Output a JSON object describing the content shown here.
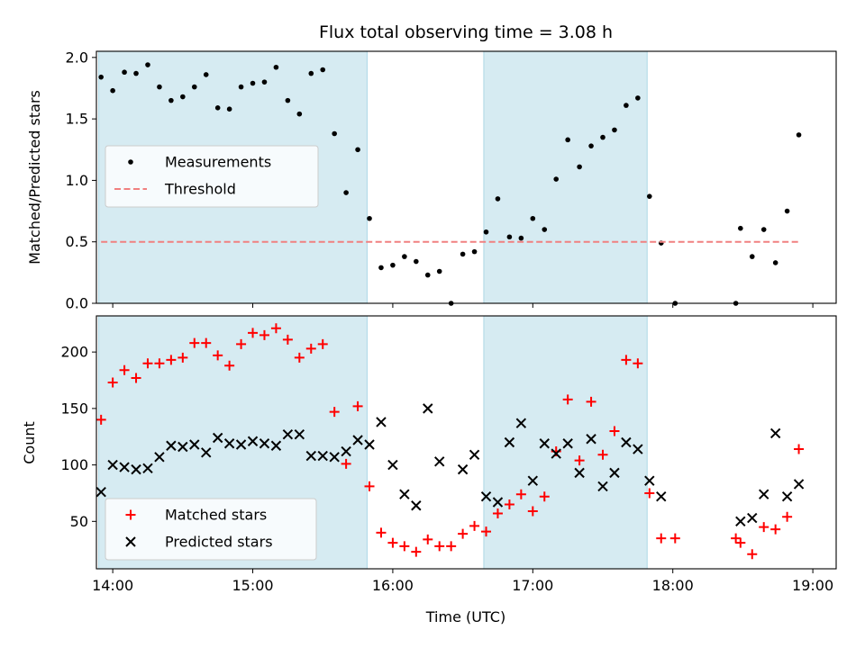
{
  "chart_data": [
    {
      "type": "scatter",
      "title": "Flux total observing time = 3.08 h",
      "xlabel": "",
      "ylabel": "Matched/Predicted stars",
      "xlim": [
        "13:53",
        "19:10"
      ],
      "ylim": [
        0,
        2.05
      ],
      "yticks": [
        0.0,
        0.5,
        1.0,
        1.5,
        2.0
      ],
      "grid": false,
      "legend_position": "center-left",
      "shaded_intervals": [
        [
          "13:54",
          "15:49"
        ],
        [
          "16:39",
          "17:49"
        ]
      ],
      "series": [
        {
          "name": "Measurements",
          "color": "#000000",
          "marker": "dot",
          "points": [
            [
              "13:55",
              1.84
            ],
            [
              "14:00",
              1.73
            ],
            [
              "14:05",
              1.88
            ],
            [
              "14:10",
              1.87
            ],
            [
              "14:15",
              1.94
            ],
            [
              "14:20",
              1.76
            ],
            [
              "14:25",
              1.65
            ],
            [
              "14:30",
              1.68
            ],
            [
              "14:35",
              1.76
            ],
            [
              "14:40",
              1.86
            ],
            [
              "14:45",
              1.59
            ],
            [
              "14:50",
              1.58
            ],
            [
              "14:55",
              1.76
            ],
            [
              "15:00",
              1.79
            ],
            [
              "15:05",
              1.8
            ],
            [
              "15:10",
              1.92
            ],
            [
              "15:15",
              1.65
            ],
            [
              "15:20",
              1.54
            ],
            [
              "15:25",
              1.87
            ],
            [
              "15:30",
              1.9
            ],
            [
              "15:35",
              1.38
            ],
            [
              "15:40",
              0.9
            ],
            [
              "15:45",
              1.25
            ],
            [
              "15:50",
              0.69
            ],
            [
              "15:55",
              0.29
            ],
            [
              "16:00",
              0.31
            ],
            [
              "16:05",
              0.38
            ],
            [
              "16:10",
              0.34
            ],
            [
              "16:15",
              0.23
            ],
            [
              "16:20",
              0.26
            ],
            [
              "16:25",
              0.0
            ],
            [
              "16:30",
              0.4
            ],
            [
              "16:35",
              0.42
            ],
            [
              "16:40",
              0.58
            ],
            [
              "16:45",
              0.85
            ],
            [
              "16:50",
              0.54
            ],
            [
              "16:55",
              0.53
            ],
            [
              "17:00",
              0.69
            ],
            [
              "17:05",
              0.6
            ],
            [
              "17:10",
              1.01
            ],
            [
              "17:15",
              1.33
            ],
            [
              "17:20",
              1.11
            ],
            [
              "17:25",
              1.28
            ],
            [
              "17:30",
              1.35
            ],
            [
              "17:35",
              1.41
            ],
            [
              "17:40",
              1.61
            ],
            [
              "17:45",
              1.67
            ],
            [
              "17:50",
              0.87
            ],
            [
              "17:55",
              0.49
            ],
            [
              "18:01",
              0.0
            ],
            [
              "18:27",
              0.0
            ],
            [
              "18:29",
              0.61
            ],
            [
              "18:34",
              0.38
            ],
            [
              "18:39",
              0.6
            ],
            [
              "18:44",
              0.33
            ],
            [
              "18:49",
              0.75
            ],
            [
              "18:54",
              1.37
            ]
          ]
        },
        {
          "name": "Threshold",
          "color": "#f08080",
          "style": "dashed",
          "points": [
            [
              "13:55",
              0.5
            ],
            [
              "18:54",
              0.5
            ]
          ]
        }
      ]
    },
    {
      "type": "scatter",
      "title": "",
      "xlabel": "Time (UTC)",
      "ylabel": "Count",
      "xlim": [
        "13:53",
        "19:10"
      ],
      "ylim": [
        8,
        232
      ],
      "yticks": [
        50,
        100,
        150,
        200
      ],
      "xticks": [
        "14:00",
        "15:00",
        "16:00",
        "17:00",
        "18:00",
        "19:00"
      ],
      "grid": false,
      "legend_position": "lower-left",
      "shaded_intervals": [
        [
          "13:54",
          "15:49"
        ],
        [
          "16:39",
          "17:49"
        ]
      ],
      "series": [
        {
          "name": "Matched stars",
          "color": "#ff0000",
          "marker": "plus",
          "points": [
            [
              "13:55",
              140
            ],
            [
              "14:00",
              173
            ],
            [
              "14:05",
              184
            ],
            [
              "14:10",
              177
            ],
            [
              "14:15",
              190
            ],
            [
              "14:20",
              190
            ],
            [
              "14:25",
              193
            ],
            [
              "14:30",
              195
            ],
            [
              "14:35",
              208
            ],
            [
              "14:40",
              208
            ],
            [
              "14:45",
              197
            ],
            [
              "14:50",
              188
            ],
            [
              "14:55",
              207
            ],
            [
              "15:00",
              217
            ],
            [
              "15:05",
              215
            ],
            [
              "15:10",
              221
            ],
            [
              "15:15",
              211
            ],
            [
              "15:20",
              195
            ],
            [
              "15:25",
              203
            ],
            [
              "15:30",
              207
            ],
            [
              "15:35",
              147
            ],
            [
              "15:40",
              101
            ],
            [
              "15:45",
              152
            ],
            [
              "15:50",
              81
            ],
            [
              "15:55",
              40
            ],
            [
              "16:00",
              31
            ],
            [
              "16:05",
              28
            ],
            [
              "16:10",
              23
            ],
            [
              "16:15",
              34
            ],
            [
              "16:20",
              28
            ],
            [
              "16:25",
              28
            ],
            [
              "16:30",
              39
            ],
            [
              "16:35",
              46
            ],
            [
              "16:40",
              41
            ],
            [
              "16:45",
              57
            ],
            [
              "16:50",
              65
            ],
            [
              "16:55",
              74
            ],
            [
              "17:00",
              59
            ],
            [
              "17:05",
              72
            ],
            [
              "17:10",
              112
            ],
            [
              "17:15",
              158
            ],
            [
              "17:20",
              104
            ],
            [
              "17:25",
              156
            ],
            [
              "17:30",
              109
            ],
            [
              "17:35",
              130
            ],
            [
              "17:40",
              193
            ],
            [
              "17:45",
              190
            ],
            [
              "17:50",
              75
            ],
            [
              "17:55",
              35
            ],
            [
              "18:01",
              35
            ],
            [
              "18:27",
              35
            ],
            [
              "18:29",
              31
            ],
            [
              "18:34",
              21
            ],
            [
              "18:39",
              45
            ],
            [
              "18:44",
              43
            ],
            [
              "18:49",
              54
            ],
            [
              "18:54",
              114
            ]
          ]
        },
        {
          "name": "Predicted stars",
          "color": "#000000",
          "marker": "x",
          "points": [
            [
              "13:55",
              76
            ],
            [
              "14:00",
              100
            ],
            [
              "14:05",
              98
            ],
            [
              "14:10",
              96
            ],
            [
              "14:15",
              97
            ],
            [
              "14:20",
              107
            ],
            [
              "14:25",
              117
            ],
            [
              "14:30",
              116
            ],
            [
              "14:35",
              118
            ],
            [
              "14:40",
              111
            ],
            [
              "14:45",
              124
            ],
            [
              "14:50",
              119
            ],
            [
              "14:55",
              118
            ],
            [
              "15:00",
              121
            ],
            [
              "15:05",
              119
            ],
            [
              "15:10",
              117
            ],
            [
              "15:15",
              127
            ],
            [
              "15:20",
              127
            ],
            [
              "15:25",
              108
            ],
            [
              "15:30",
              108
            ],
            [
              "15:35",
              107
            ],
            [
              "15:40",
              112
            ],
            [
              "15:45",
              122
            ],
            [
              "15:50",
              118
            ],
            [
              "15:55",
              138
            ],
            [
              "16:00",
              100
            ],
            [
              "16:05",
              74
            ],
            [
              "16:10",
              64
            ],
            [
              "16:15",
              150
            ],
            [
              "16:20",
              103
            ],
            [
              "16:30",
              96
            ],
            [
              "16:35",
              109
            ],
            [
              "16:40",
              72
            ],
            [
              "16:45",
              67
            ],
            [
              "16:50",
              120
            ],
            [
              "16:55",
              137
            ],
            [
              "17:00",
              86
            ],
            [
              "17:05",
              119
            ],
            [
              "17:10",
              110
            ],
            [
              "17:15",
              119
            ],
            [
              "17:20",
              93
            ],
            [
              "17:25",
              123
            ],
            [
              "17:30",
              81
            ],
            [
              "17:35",
              93
            ],
            [
              "17:40",
              120
            ],
            [
              "17:45",
              114
            ],
            [
              "17:50",
              86
            ],
            [
              "17:55",
              72
            ],
            [
              "18:29",
              50
            ],
            [
              "18:34",
              53
            ],
            [
              "18:39",
              74
            ],
            [
              "18:44",
              128
            ],
            [
              "18:49",
              72
            ],
            [
              "18:54",
              83
            ]
          ]
        }
      ]
    }
  ]
}
